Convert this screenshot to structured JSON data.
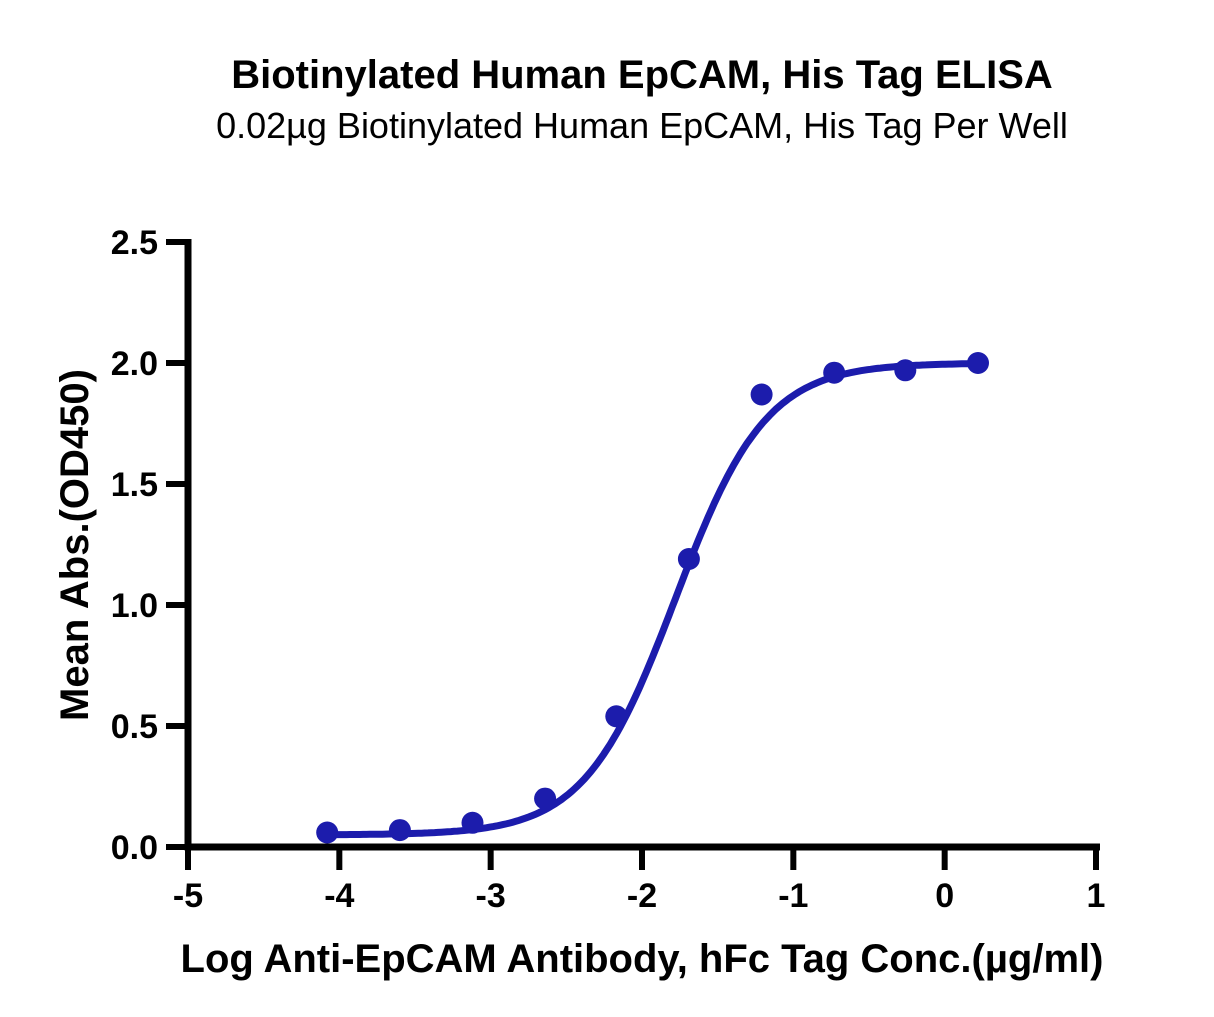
{
  "chart_data": {
    "type": "scatter",
    "title": "Biotinylated Human EpCAM, His Tag ELISA",
    "subtitle": "0.02µg Biotinylated Human EpCAM, His Tag Per Well",
    "xlabel": "Log Anti-EpCAM Antibody, hFc Tag Conc.(µg/ml)",
    "ylabel": "Mean Abs.(OD450)",
    "xlim": [
      -5,
      1
    ],
    "ylim": [
      0,
      2.5
    ],
    "x_tick_labels": [
      "-5",
      "-4",
      "-3",
      "-2",
      "-1",
      "0",
      "1"
    ],
    "y_tick_labels": [
      "0.0",
      "0.5",
      "1.0",
      "1.5",
      "2.0",
      "2.5"
    ],
    "grid": false,
    "legend": "none",
    "series": [
      {
        "name": "Anti-EpCAM Antibody, hFc Tag",
        "x": [
          -4.08,
          -3.6,
          -3.12,
          -2.64,
          -2.17,
          -1.69,
          -1.21,
          -0.73,
          -0.26,
          0.22
        ],
        "y": [
          0.06,
          0.07,
          0.1,
          0.2,
          0.54,
          1.19,
          1.87,
          1.96,
          1.97,
          2.0
        ],
        "marker": "circle",
        "fit": {
          "model": "4PL",
          "bottom": 0.05,
          "top": 2.0,
          "logEC50": -1.78,
          "hill": 1.45
        }
      }
    ],
    "colors": {
      "series": "#1c1cac",
      "axis": "#000000",
      "background": "#ffffff"
    }
  }
}
